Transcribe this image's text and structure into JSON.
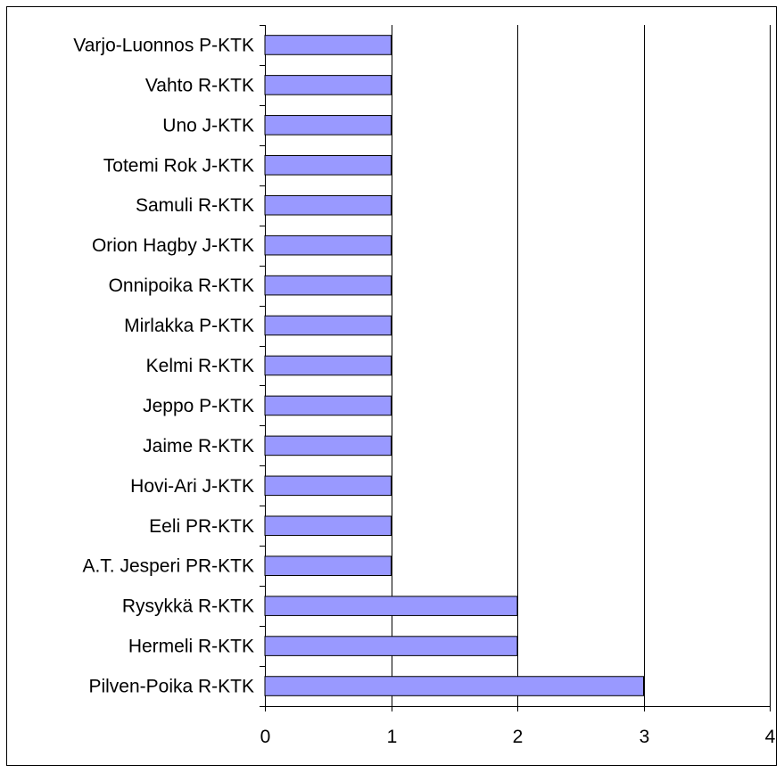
{
  "chart_data": {
    "type": "bar",
    "orientation": "horizontal",
    "categories": [
      "Varjo-Luonnos P-KTK",
      "Vahto R-KTK",
      "Uno J-KTK",
      "Totemi Rok J-KTK",
      "Samuli R-KTK",
      "Orion Hagby J-KTK",
      "Onnipoika R-KTK",
      "Mirlakka P-KTK",
      "Kelmi R-KTK",
      "Jeppo P-KTK",
      "Jaime R-KTK",
      "Hovi-Ari J-KTK",
      "Eeli PR-KTK",
      "A.T. Jesperi PR-KTK",
      "Rysykkä R-KTK",
      "Hermeli R-KTK",
      "Pilven-Poika R-KTK"
    ],
    "values": [
      1,
      1,
      1,
      1,
      1,
      1,
      1,
      1,
      1,
      1,
      1,
      1,
      1,
      1,
      2,
      2,
      3
    ],
    "xlim": [
      0,
      4
    ],
    "xticks": [
      0,
      1,
      2,
      3,
      4
    ],
    "title": "",
    "xlabel": "",
    "ylabel": "",
    "grid": "vertical major gridlines",
    "legend": "none",
    "colors": {
      "bar_fill": "#9999ff",
      "bar_stroke": "#000000",
      "grid": "#000000"
    }
  }
}
